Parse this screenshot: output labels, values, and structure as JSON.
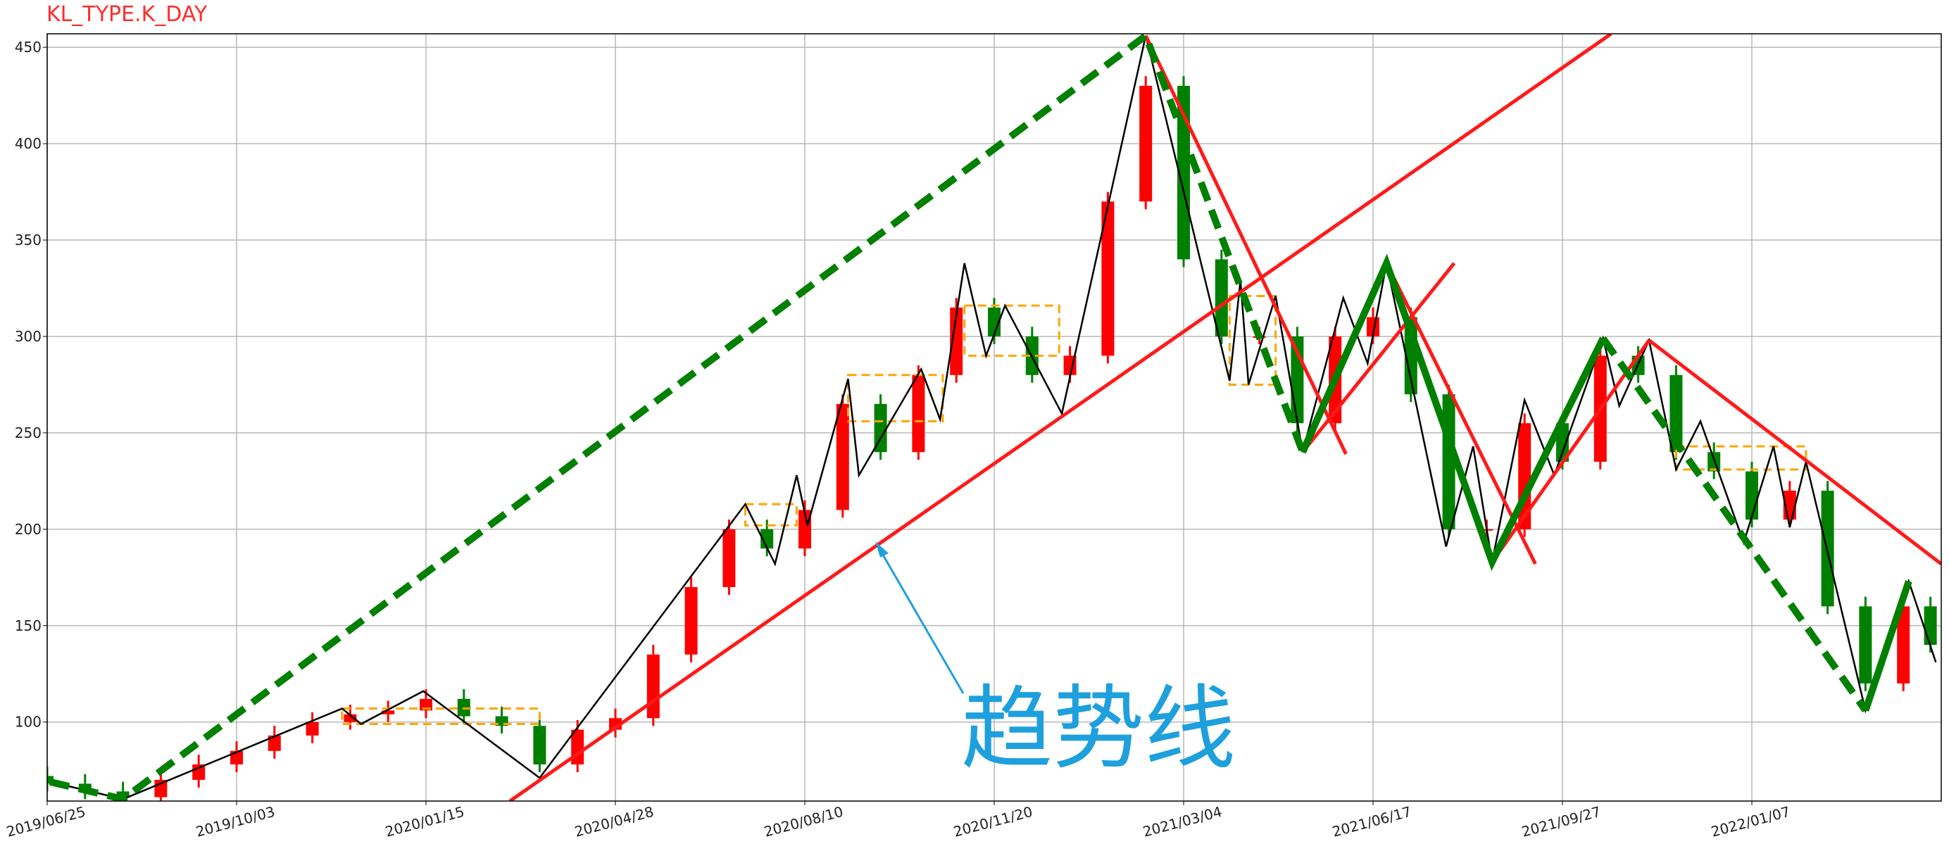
{
  "chart_data": {
    "type": "candlestick",
    "title": "KL_TYPE.K_DAY",
    "annotation": "趋势线",
    "xlim": [
      0,
      700
    ],
    "xticks": [
      {
        "value": 0,
        "label": "2019/06/25"
      },
      {
        "value": 70,
        "label": "2019/10/03"
      },
      {
        "value": 140,
        "label": "2020/01/15"
      },
      {
        "value": 210,
        "label": "2020/04/28"
      },
      {
        "value": 280,
        "label": "2020/08/10"
      },
      {
        "value": 350,
        "label": "2020/11/20"
      },
      {
        "value": 420,
        "label": "2021/03/04"
      },
      {
        "value": 490,
        "label": "2021/06/17"
      },
      {
        "value": 560,
        "label": "2021/09/27"
      },
      {
        "value": 630,
        "label": "2022/01/07"
      }
    ],
    "ylim": [
      59,
      457
    ],
    "yticks": [
      100,
      150,
      200,
      250,
      300,
      350,
      400,
      450
    ],
    "grid": true,
    "candles": {
      "up_color": "#ff0000",
      "down_color": "#008000",
      "x": [
        0,
        14,
        28,
        42,
        56,
        70,
        84,
        98,
        112,
        126,
        140,
        154,
        168,
        182,
        196,
        210,
        224,
        238,
        252,
        266,
        280,
        294,
        308,
        322,
        336,
        350,
        364,
        378,
        392,
        406,
        420,
        434,
        448,
        462,
        476,
        490,
        504,
        518,
        532,
        546,
        560,
        574,
        588,
        602,
        616,
        630,
        644,
        658,
        672,
        686,
        696
      ],
      "open": [
        72,
        68,
        64,
        61,
        70,
        78,
        85,
        93,
        100,
        104,
        106,
        112,
        103,
        98,
        78,
        96,
        102,
        135,
        170,
        200,
        190,
        210,
        265,
        240,
        280,
        315,
        300,
        280,
        290,
        370,
        430,
        340,
        300,
        300,
        255,
        300,
        310,
        270,
        200,
        200,
        255,
        235,
        290,
        280,
        240,
        230,
        205,
        220,
        160,
        120,
        160
      ],
      "high": [
        77,
        73,
        69,
        75,
        83,
        90,
        98,
        105,
        109,
        111,
        117,
        117,
        108,
        103,
        101,
        107,
        140,
        175,
        205,
        205,
        215,
        270,
        270,
        285,
        320,
        320,
        305,
        295,
        375,
        435,
        435,
        345,
        305,
        305,
        305,
        315,
        315,
        275,
        205,
        260,
        260,
        295,
        295,
        285,
        245,
        235,
        225,
        225,
        165,
        165,
        165
      ],
      "low": [
        64,
        60,
        59,
        59,
        66,
        74,
        81,
        89,
        96,
        100,
        102,
        99,
        94,
        74,
        74,
        92,
        98,
        131,
        166,
        186,
        186,
        206,
        236,
        236,
        276,
        296,
        276,
        276,
        286,
        366,
        336,
        296,
        296,
        251,
        251,
        296,
        266,
        196,
        196,
        196,
        231,
        231,
        276,
        236,
        226,
        201,
        201,
        156,
        116,
        116,
        136
      ],
      "close": [
        68,
        64,
        61,
        70,
        78,
        85,
        93,
        100,
        104,
        106,
        112,
        103,
        98,
        78,
        96,
        102,
        135,
        170,
        200,
        190,
        210,
        265,
        240,
        280,
        315,
        300,
        280,
        290,
        370,
        430,
        340,
        300,
        300,
        255,
        300,
        310,
        270,
        200,
        200,
        255,
        235,
        290,
        280,
        240,
        230,
        205,
        220,
        160,
        120,
        160,
        140
      ]
    },
    "bi": {
      "color": "#000000",
      "x": [
        1,
        28,
        109,
        116,
        139,
        182,
        258,
        269,
        277,
        281,
        296,
        300,
        323,
        330,
        339,
        347,
        354,
        375,
        406,
        437,
        441,
        444,
        454,
        464,
        479,
        488,
        495,
        517,
        527,
        534,
        546,
        557,
        575,
        581,
        592,
        602,
        611,
        627,
        638,
        644,
        650,
        672,
        688,
        698
      ],
      "values": [
        69,
        60,
        107,
        99,
        116,
        71,
        213,
        182,
        228,
        202,
        278,
        228,
        283,
        257,
        338,
        290,
        316,
        260,
        456,
        277,
        329,
        275,
        321,
        240,
        320,
        286,
        338,
        191,
        243,
        183,
        267,
        228,
        299,
        264,
        298,
        231,
        256,
        193,
        243,
        201,
        235,
        106,
        173,
        131
      ]
    },
    "segment_color": "#008000",
    "segments": [
      {
        "style": "dashed",
        "x": [
          1,
          28,
          406,
          464
        ],
        "values": [
          69,
          60,
          456,
          240
        ]
      },
      {
        "style": "solid",
        "x": [
          464,
          495,
          534,
          575
        ],
        "values": [
          240,
          338,
          183,
          299
        ]
      },
      {
        "style": "dashed",
        "x": [
          575,
          672
        ],
        "values": [
          299,
          106
        ]
      },
      {
        "style": "solid",
        "x": [
          672,
          688
        ],
        "values": [
          106,
          173
        ]
      }
    ],
    "trend_color": "#ff1a1a",
    "trend_lines": [
      {
        "x": [
          171,
          578
        ],
        "values": [
          59,
          457
        ]
      },
      {
        "x": [
          406,
          480
        ],
        "values": [
          456,
          239
        ]
      },
      {
        "x": [
          464,
          520
        ],
        "values": [
          240,
          338
        ]
      },
      {
        "x": [
          495,
          550
        ],
        "values": [
          338,
          182
        ]
      },
      {
        "x": [
          534,
          592
        ],
        "values": [
          183,
          298
        ]
      },
      {
        "x": [
          592,
          700
        ],
        "values": [
          298,
          182
        ]
      }
    ],
    "zhongshu_color": "#ffa500",
    "zhongshu": [
      {
        "x": [
          109,
          182
        ],
        "values": [
          99,
          107
        ]
      },
      {
        "x": [
          258,
          277
        ],
        "values": [
          202,
          213
        ]
      },
      {
        "x": [
          296,
          331
        ],
        "values": [
          256,
          280
        ]
      },
      {
        "x": [
          339,
          374
        ],
        "values": [
          290,
          316
        ]
      },
      {
        "x": [
          437,
          454
        ],
        "values": [
          275,
          321
        ]
      },
      {
        "x": [
          602,
          650
        ],
        "values": [
          231,
          243
        ]
      }
    ]
  }
}
